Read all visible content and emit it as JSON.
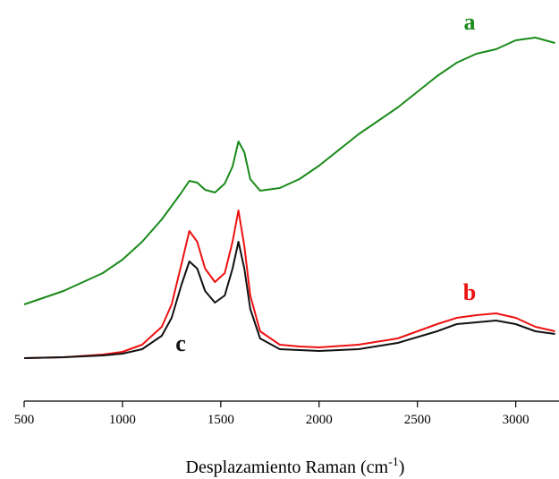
{
  "chart_data": {
    "type": "line",
    "x_label": {
      "text": "Desplazamiento Raman (cm",
      "superscript": "-1",
      "suffix": ")"
    },
    "x": [
      500,
      700,
      900,
      1000,
      1100,
      1200,
      1250,
      1300,
      1340,
      1380,
      1420,
      1470,
      1520,
      1560,
      1590,
      1620,
      1650,
      1700,
      1800,
      1900,
      2000,
      2200,
      2400,
      2600,
      2700,
      2800,
      2900,
      3000,
      3100,
      3200
    ],
    "series": [
      {
        "name": "a",
        "color": "#1a8a1a",
        "values": [
          108,
          123,
          143,
          158,
          178,
          203,
          218,
          233,
          246,
          244,
          236,
          233,
          243,
          262,
          290,
          278,
          248,
          235,
          238,
          248,
          263,
          298,
          328,
          363,
          378,
          388,
          393,
          403,
          406,
          400
        ]
      },
      {
        "name": "b",
        "color": "#ee1111",
        "values": [
          48,
          49,
          52,
          55,
          63,
          83,
          108,
          153,
          190,
          178,
          148,
          133,
          143,
          178,
          213,
          173,
          118,
          78,
          63,
          61,
          60,
          63,
          70,
          86,
          93,
          96,
          98,
          93,
          83,
          78
        ]
      },
      {
        "name": "c",
        "color": "#111111",
        "values": [
          48,
          49,
          51,
          53,
          58,
          73,
          93,
          130,
          156,
          148,
          123,
          110,
          118,
          148,
          178,
          148,
          103,
          70,
          58,
          57,
          56,
          58,
          65,
          78,
          86,
          88,
          90,
          86,
          78,
          75
        ]
      }
    ],
    "xlim": [
      500,
      3220
    ],
    "xticks": [
      500,
      1000,
      1500,
      2000,
      2500,
      3000
    ],
    "ylim": [
      0,
      448
    ]
  }
}
